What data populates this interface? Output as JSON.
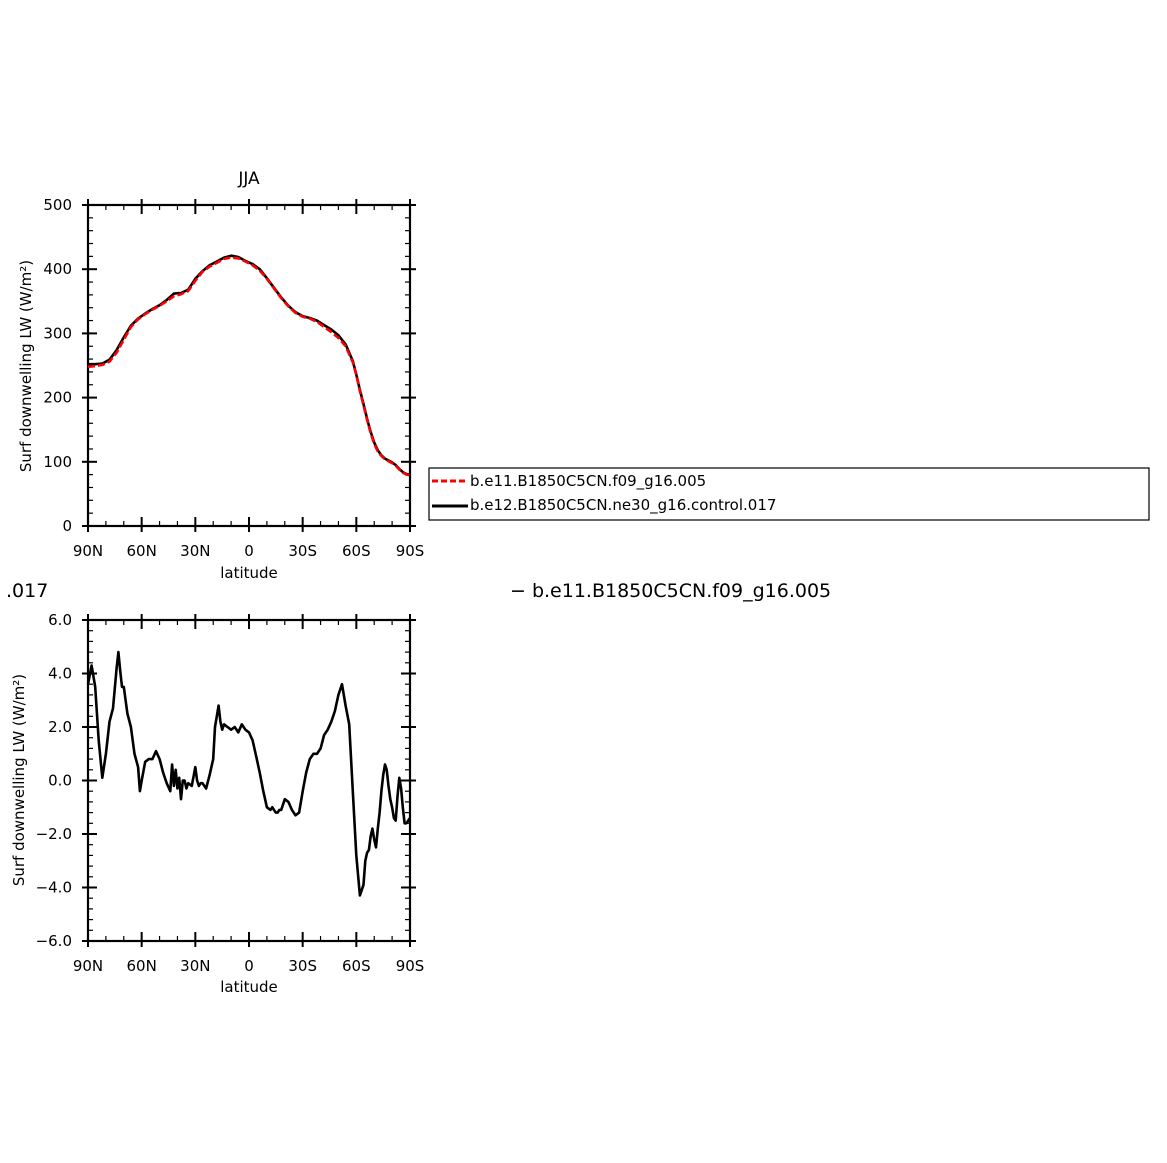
{
  "colors": {
    "ref": "#ff0000",
    "model": "#000000",
    "frame": "#000000"
  },
  "chart_data": [
    {
      "type": "line",
      "title": "JJA",
      "xlabel": "latitude",
      "ylabel": "Surf downwelling LW (W/m²)",
      "xlim": [
        90,
        -90
      ],
      "ylim": [
        0,
        500
      ],
      "yticks": [
        0,
        100,
        200,
        300,
        400,
        500
      ],
      "ytick_labels": [
        "0",
        "100",
        "200",
        "300",
        "400",
        "500"
      ],
      "xticks": [
        90,
        60,
        30,
        0,
        -30,
        -60,
        -90
      ],
      "xtick_labels": [
        "90N",
        "60N",
        "30N",
        "0",
        "30S",
        "60S",
        "90S"
      ],
      "grid": false,
      "legend": "right",
      "series": [
        {
          "name": "b.e11.B1850C5CN.f09_g16.005",
          "color": "#ff0000",
          "dash": "dashed",
          "x": [
            90,
            86,
            82,
            78,
            74,
            70,
            66,
            62,
            58,
            54,
            50,
            46,
            42,
            38,
            34,
            30,
            26,
            22,
            18,
            14,
            10,
            6,
            2,
            -2,
            -6,
            -10,
            -14,
            -18,
            -22,
            -26,
            -30,
            -34,
            -38,
            -42,
            -46,
            -50,
            -54,
            -58,
            -60,
            -62,
            -64,
            -66,
            -68,
            -70,
            -72,
            -74,
            -76,
            -78,
            -80,
            -82,
            -84,
            -86,
            -88,
            -90
          ],
          "y": [
            248,
            249,
            251,
            256,
            270,
            290,
            310,
            322,
            330,
            337,
            343,
            350,
            358,
            361,
            366,
            382,
            396,
            404,
            410,
            416,
            418,
            417,
            412,
            406,
            398,
            385,
            370,
            355,
            342,
            332,
            326,
            323,
            318,
            310,
            302,
            293,
            280,
            255,
            235,
            210,
            188,
            165,
            145,
            128,
            116,
            109,
            104,
            101,
            98,
            94,
            88,
            83,
            80,
            79
          ]
        },
        {
          "name": "b.e12.B1850C5CN.ne30_g16.control.017",
          "color": "#000000",
          "dash": "solid",
          "x": [
            90,
            86,
            82,
            78,
            74,
            70,
            66,
            62,
            58,
            54,
            50,
            46,
            42,
            38,
            34,
            30,
            26,
            22,
            18,
            14,
            10,
            6,
            2,
            -2,
            -6,
            -10,
            -14,
            -18,
            -22,
            -26,
            -30,
            -34,
            -38,
            -42,
            -46,
            -50,
            -54,
            -58,
            -60,
            -62,
            -64,
            -66,
            -68,
            -70,
            -72,
            -74,
            -76,
            -78,
            -80,
            -82,
            -84,
            -86,
            -88,
            -90
          ],
          "y": [
            252,
            252,
            253,
            259,
            274,
            294,
            312,
            323,
            331,
            338,
            344,
            352,
            362,
            363,
            368,
            385,
            397,
            406,
            412,
            418,
            421,
            419,
            413,
            408,
            400,
            386,
            371,
            356,
            343,
            333,
            327,
            324,
            320,
            313,
            306,
            297,
            283,
            257,
            236,
            212,
            190,
            167,
            147,
            130,
            118,
            110,
            105,
            102,
            99,
            95,
            89,
            84,
            81,
            80
          ]
        }
      ]
    },
    {
      "type": "line",
      "title": "",
      "xlabel": "latitude",
      "ylabel": "Surf downwelling LW (W/m²)",
      "xlim": [
        90,
        -90
      ],
      "ylim": [
        -6,
        6
      ],
      "yticks": [
        -6,
        -4,
        -2,
        0,
        2,
        4,
        6
      ],
      "ytick_labels": [
        "−6.0",
        "−4.0",
        "−2.0",
        "0.0",
        "2.0",
        "4.0",
        "6.0"
      ],
      "xticks": [
        90,
        60,
        30,
        0,
        -30,
        -60,
        -90
      ],
      "xtick_labels": [
        "90N",
        "60N",
        "30N",
        "0",
        "30S",
        "60S",
        "90S"
      ],
      "grid": false,
      "series": [
        {
          "color": "#000000",
          "dash": "solid",
          "x": [
            90,
            88,
            86,
            84,
            82,
            80,
            78,
            76,
            74,
            73,
            72,
            71,
            70,
            68,
            66,
            64,
            62,
            61,
            60,
            58,
            56,
            54,
            52,
            50,
            48,
            46,
            44,
            43,
            42,
            41,
            40,
            39,
            38,
            37,
            36,
            35,
            34,
            32,
            30,
            29,
            28,
            27,
            26,
            24,
            22,
            20,
            19,
            18,
            17,
            16,
            15,
            14,
            12,
            10,
            8,
            6,
            4,
            2,
            0,
            -2,
            -4,
            -6,
            -8,
            -10,
            -12,
            -13,
            -14,
            -15,
            -16,
            -17,
            -18,
            -19,
            -20,
            -22,
            -24,
            -26,
            -28,
            -30,
            -32,
            -34,
            -36,
            -38,
            -40,
            -42,
            -44,
            -46,
            -48,
            -50,
            -52,
            -54,
            -56,
            -58,
            -60,
            -62,
            -64,
            -65,
            -66,
            -67,
            -68,
            -69,
            -70,
            -71,
            -72,
            -73,
            -74,
            -75,
            -76,
            -77,
            -78,
            -79,
            -80,
            -81,
            -82,
            -83,
            -84,
            -85,
            -86,
            -87,
            -88,
            -89,
            -90
          ],
          "y": [
            3.6,
            4.3,
            3.5,
            1.5,
            0.1,
            1.0,
            2.2,
            2.7,
            4.2,
            4.8,
            4.1,
            3.5,
            3.5,
            2.5,
            2.0,
            1.0,
            0.5,
            -0.4,
            0.0,
            0.7,
            0.8,
            0.8,
            1.1,
            0.8,
            0.3,
            -0.1,
            -0.4,
            0.6,
            -0.2,
            0.4,
            -0.3,
            0.1,
            -0.7,
            0.0,
            0.0,
            -0.3,
            -0.1,
            -0.2,
            0.5,
            0.0,
            -0.2,
            -0.1,
            -0.1,
            -0.3,
            0.2,
            0.8,
            2.0,
            2.4,
            2.8,
            2.2,
            1.9,
            2.1,
            2.0,
            1.9,
            2.0,
            1.8,
            2.1,
            1.9,
            1.8,
            1.5,
            0.9,
            0.3,
            -0.4,
            -1.0,
            -1.1,
            -1.0,
            -1.1,
            -1.2,
            -1.2,
            -1.1,
            -1.1,
            -0.9,
            -0.7,
            -0.8,
            -1.1,
            -1.3,
            -1.2,
            -0.4,
            0.3,
            0.8,
            1.0,
            1.0,
            1.2,
            1.7,
            1.9,
            2.2,
            2.6,
            3.2,
            3.6,
            2.8,
            2.1,
            -0.4,
            -2.8,
            -4.3,
            -3.9,
            -3.0,
            -2.7,
            -2.6,
            -2.1,
            -1.8,
            -2.2,
            -2.5,
            -1.8,
            -1.2,
            -0.4,
            0.2,
            0.6,
            0.4,
            -0.2,
            -0.7,
            -1.0,
            -1.4,
            -1.5,
            -0.6,
            0.1,
            -0.3,
            -1.0,
            -1.6,
            -1.6,
            -1.5,
            -1.4
          ]
        }
      ]
    }
  ],
  "cut_text_left": ".017",
  "cut_legend_entry": "− b.e11.B1850C5CN.f09_g16.005"
}
